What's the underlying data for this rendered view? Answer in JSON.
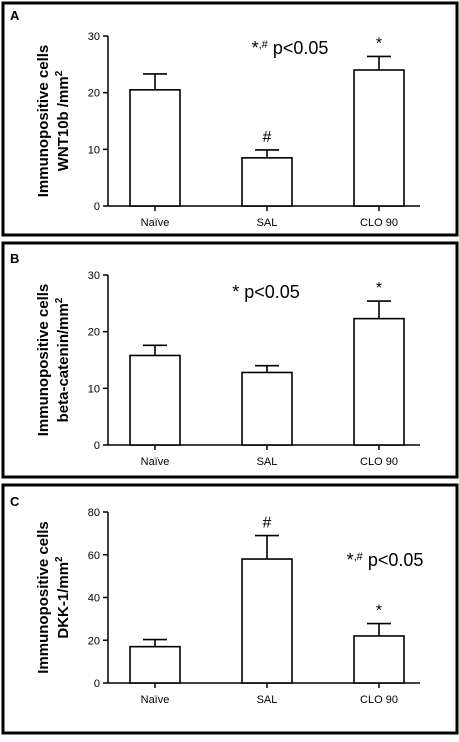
{
  "chart_data": [
    {
      "type": "bar",
      "panel": "A",
      "ylabel_line1": "Immunopositive cells",
      "ylabel_line2": "WNT10b /mm",
      "ylabel_sup": "2",
      "categories": [
        "Naïve",
        "SAL",
        "CLO 90"
      ],
      "values": [
        20.5,
        8.5,
        24.0
      ],
      "errors": [
        2.8,
        1.4,
        2.4
      ],
      "markers": [
        "",
        "#",
        "*"
      ],
      "yticks": [
        0,
        10,
        20,
        30
      ],
      "ylim": [
        0,
        30
      ],
      "annotation": {
        "prefix": "*",
        "sup": ",#",
        "text": " p<0.05",
        "position": "top-center"
      }
    },
    {
      "type": "bar",
      "panel": "B",
      "ylabel_line1": "Immunopositive cells",
      "ylabel_line2": "beta-catenin/mm",
      "ylabel_sup": "2",
      "categories": [
        "Naïve",
        "SAL",
        "CLO 90"
      ],
      "values": [
        15.8,
        12.8,
        22.3
      ],
      "errors": [
        1.8,
        1.2,
        3.1
      ],
      "markers": [
        "",
        "",
        "*"
      ],
      "yticks": [
        0,
        10,
        20,
        30
      ],
      "ylim": [
        0,
        30
      ],
      "annotation": {
        "prefix": "*",
        "sup": "",
        "text": " p<0.05",
        "position": "top-center"
      }
    },
    {
      "type": "bar",
      "panel": "C",
      "ylabel_line1": "Immunopositive cells",
      "ylabel_line2": "DKK-1/mm",
      "ylabel_sup": "2",
      "categories": [
        "Naïve",
        "SAL",
        "CLO 90"
      ],
      "values": [
        17.0,
        58.0,
        22.0
      ],
      "errors": [
        3.3,
        11.0,
        5.8
      ],
      "markers": [
        "",
        "#",
        "*"
      ],
      "yticks": [
        0,
        20,
        40,
        60,
        80
      ],
      "ylim": [
        0,
        80
      ],
      "annotation": {
        "prefix": "*",
        "sup": ",#",
        "text": " p<0.05",
        "position": "right"
      }
    }
  ]
}
